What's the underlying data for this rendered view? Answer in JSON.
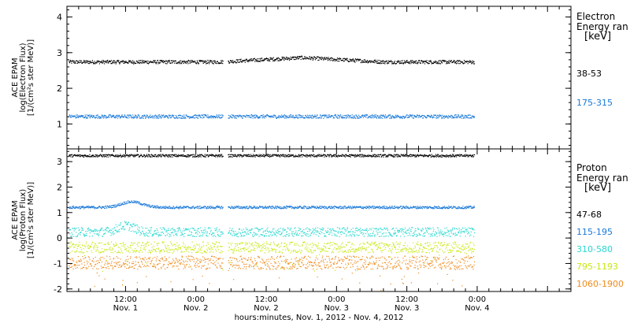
{
  "chart_data": [
    {
      "type": "scatter",
      "panel": "electron",
      "ylabel": [
        "ACE EPAM",
        "log(Electron Flux)",
        "[1/(cm²s ster MeV)]"
      ],
      "ylim": [
        0.3,
        4.3
      ],
      "yticks": [
        "1",
        "2",
        "3",
        "4"
      ],
      "legend_title": [
        "Electron",
        "Energy ran",
        "[keV]"
      ],
      "series": [
        {
          "name": "38-53",
          "color": "#000000",
          "level": 2.75
        },
        {
          "name": "175-315",
          "color": "#1878d8",
          "level": 1.22
        }
      ]
    },
    {
      "type": "scatter",
      "panel": "proton",
      "ylabel": [
        "ACE EPAM",
        "log(Proton Flux)",
        "[1/(cm²s ster MeV)]"
      ],
      "ylim": [
        -2.1,
        3.5
      ],
      "yticks": [
        "-2",
        "-1",
        "0",
        "1",
        "2",
        "3"
      ],
      "legend_title": [
        "Proton",
        "Energy ran",
        "[keV]"
      ],
      "series": [
        {
          "name": "47-68",
          "color": "#000000",
          "level": 3.25
        },
        {
          "name": "115-195",
          "color": "#1878d8",
          "level": 1.22
        },
        {
          "name": "310-580",
          "color": "#28d8d0",
          "level": 0.25
        },
        {
          "name": "795-1193",
          "color": "#c8e810",
          "level": -0.35
        },
        {
          "name": "1060-1900",
          "color": "#f08a1c",
          "level": -0.95
        }
      ]
    }
  ],
  "x_axis": {
    "ticks": [
      {
        "time": "12:00",
        "date": "Nov. 1"
      },
      {
        "time": "0:00",
        "date": "Nov. 2"
      },
      {
        "time": "12:00",
        "date": "Nov. 2"
      },
      {
        "time": "0:00",
        "date": "Nov. 3"
      },
      {
        "time": "12:00",
        "date": "Nov. 3"
      },
      {
        "time": "0:00",
        "date": "Nov. 4"
      }
    ],
    "label": "hours:minutes, Nov.  1, 2012 - Nov.  4, 2012",
    "xlim_hours": [
      2,
      88
    ],
    "data_gap_hours": [
      28.6,
      29.4
    ],
    "data_end_hours": 71.5
  },
  "legend": {
    "electron": {
      "title1": "Electron",
      "title2": "Energy ran",
      "unit": "[keV]",
      "items": [
        "38-53",
        "175-315"
      ]
    },
    "proton": {
      "title1": "Proton",
      "title2": "Energy ran",
      "unit": "[keV]",
      "items": [
        "47-68",
        "115-195",
        "310-580",
        "795-1193",
        "1060-1900"
      ]
    }
  },
  "colors": {
    "black": "#000000",
    "blue": "#1878d8",
    "cyan": "#28d8d0",
    "yellow": "#c8e810",
    "orange": "#f08a1c"
  }
}
